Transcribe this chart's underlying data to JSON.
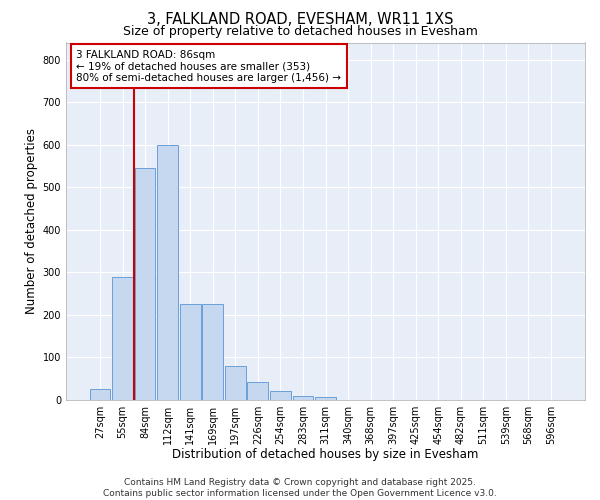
{
  "title_line1": "3, FALKLAND ROAD, EVESHAM, WR11 1XS",
  "title_line2": "Size of property relative to detached houses in Evesham",
  "xlabel": "Distribution of detached houses by size in Evesham",
  "ylabel": "Number of detached properties",
  "categories": [
    "27sqm",
    "55sqm",
    "84sqm",
    "112sqm",
    "141sqm",
    "169sqm",
    "197sqm",
    "226sqm",
    "254sqm",
    "283sqm",
    "311sqm",
    "340sqm",
    "368sqm",
    "397sqm",
    "425sqm",
    "454sqm",
    "482sqm",
    "511sqm",
    "539sqm",
    "568sqm",
    "596sqm"
  ],
  "bar_values": [
    25,
    290,
    545,
    600,
    225,
    225,
    80,
    42,
    20,
    10,
    8,
    0,
    0,
    0,
    0,
    0,
    0,
    0,
    0,
    0,
    0
  ],
  "bar_color": "#c5d8f0",
  "bar_edgecolor": "#6a9fd8",
  "vline_x": 1.5,
  "vline_color": "#cc0000",
  "ylim": [
    0,
    840
  ],
  "yticks": [
    0,
    100,
    200,
    300,
    400,
    500,
    600,
    700,
    800
  ],
  "annotation_text": "3 FALKLAND ROAD: 86sqm\n← 19% of detached houses are smaller (353)\n80% of semi-detached houses are larger (1,456) →",
  "annotation_box_edgecolor": "#cc0000",
  "annotation_box_facecolor": "#ffffff",
  "footer_line1": "Contains HM Land Registry data © Crown copyright and database right 2025.",
  "footer_line2": "Contains public sector information licensed under the Open Government Licence v3.0.",
  "background_color": "#e8eef8",
  "grid_color": "#ffffff",
  "title_fontsize": 10.5,
  "subtitle_fontsize": 9,
  "axis_label_fontsize": 8.5,
  "tick_fontsize": 7,
  "annotation_fontsize": 7.5,
  "footer_fontsize": 6.5
}
